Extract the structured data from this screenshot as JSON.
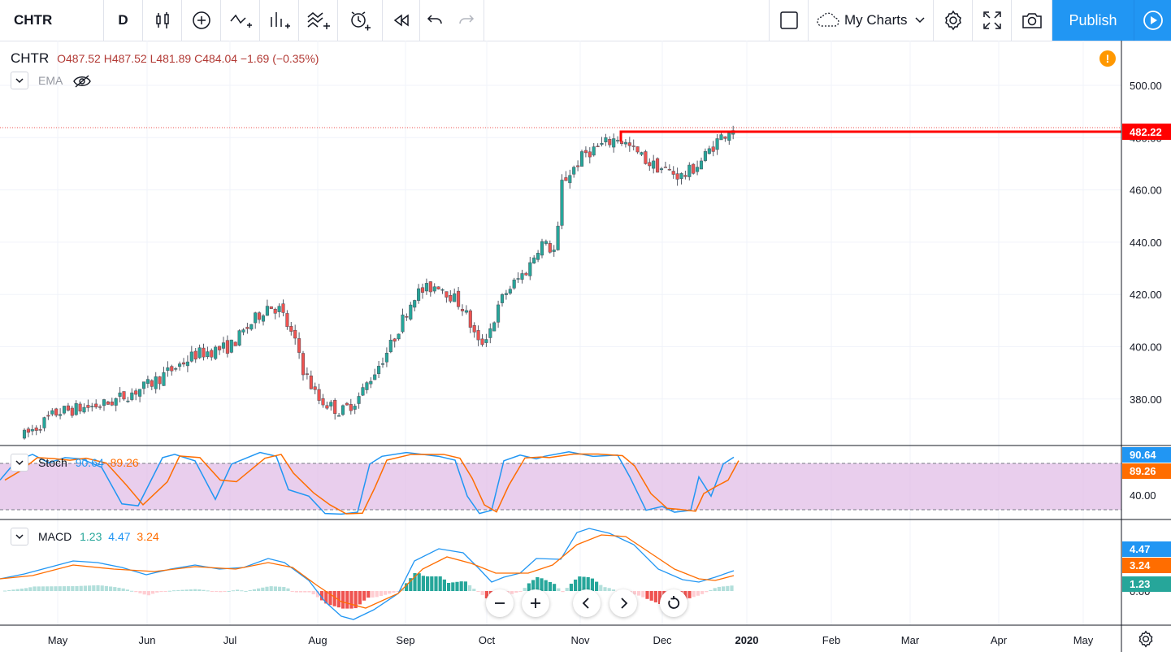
{
  "toolbar": {
    "symbol": "CHTR",
    "interval": "D",
    "my_charts": "My Charts",
    "publish": "Publish"
  },
  "legend": {
    "main": {
      "symbol": "CHTR",
      "open_label": "O",
      "open": "487.52",
      "high_label": "H",
      "high": "487.52",
      "low_label": "L",
      "low": "481.89",
      "close_label": "C",
      "close": "484.04",
      "change": "−1.69 (−0.35%)"
    },
    "ema_label": "EMA",
    "stoch": {
      "label": "Stoch",
      "k": "90.64",
      "d": "89.26"
    },
    "macd": {
      "label": "MACD",
      "hist": "1.23",
      "macd": "4.47",
      "signal": "3.24"
    }
  },
  "colors": {
    "up": "#26a69a",
    "down": "#ef5350",
    "k_line": "#2196f3",
    "d_line": "#ff6d00",
    "stoch_band": "#e1bee7",
    "level_line": "#ff0000",
    "accent": "#2196f3",
    "warning": "#ff9800"
  },
  "price_axis": {
    "ticks": [
      "500.00",
      "480.00",
      "460.00",
      "440.00",
      "420.00",
      "400.00",
      "380.00"
    ],
    "level_label": "482.22"
  },
  "stoch_axis": {
    "ticks": [
      "40.00"
    ],
    "k_label": "90.64",
    "d_label": "89.26"
  },
  "macd_axis": {
    "ticks": [
      "0.00"
    ],
    "macd_label": "4.47",
    "signal_label": "3.24",
    "hist_label": "1.23"
  },
  "time_axis": [
    "May",
    "Jun",
    "Jul",
    "Aug",
    "Sep",
    "Oct",
    "Nov",
    "Dec",
    "2020",
    "Feb",
    "Mar",
    "Apr",
    "May"
  ],
  "chart_data": {
    "type": "candlestick",
    "symbol": "CHTR",
    "interval": "D",
    "ylim": [
      365,
      512
    ],
    "horizontal_level": 482.22,
    "key_closes": [
      {
        "month": "May",
        "value": 377
      },
      {
        "month": "Jun",
        "value": 390
      },
      {
        "month": "Jul",
        "value": 416
      },
      {
        "month": "Aug",
        "value": 380
      },
      {
        "month": "Sep",
        "value": 424
      },
      {
        "month": "Oct",
        "value": 412
      },
      {
        "month": "Nov",
        "value": 478
      },
      {
        "month": "Dec",
        "value": 466
      },
      {
        "month": "end",
        "value": 484.04
      }
    ],
    "stoch_bounds": [
      20,
      80
    ],
    "macd_last": {
      "macd": 4.47,
      "signal": 3.24,
      "hist": 1.23
    }
  }
}
